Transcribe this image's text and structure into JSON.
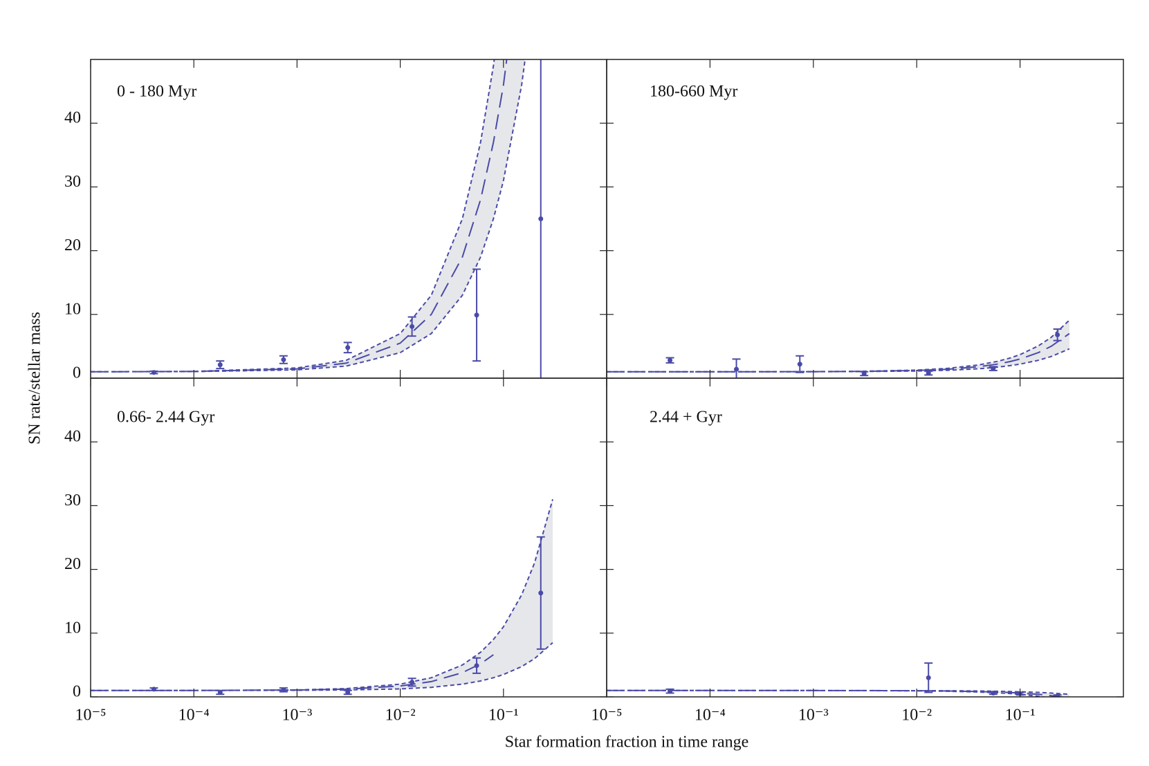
{
  "xlabel": "Star formation fraction in time range",
  "ylabel": "SN rate/stellar mass",
  "chart_data": [
    {
      "type": "scatter",
      "title": "0 - 180 Myr",
      "color": "#4a4aa8",
      "shade": "#e6e7ea",
      "xlog": true,
      "x": [
        4.1e-05,
        0.00018,
        0.00074,
        0.0031,
        0.013,
        0.055,
        0.23
      ],
      "values": [
        0.9,
        2.1,
        2.9,
        4.8,
        8.1,
        9.9,
        25
      ],
      "errors": [
        0.2,
        0.6,
        0.6,
        0.8,
        1.5,
        7.2,
        30
      ],
      "fit": {
        "x": [
          1e-05,
          0.0001,
          0.001,
          0.003,
          0.01,
          0.02,
          0.04,
          0.06,
          0.08,
          0.1,
          0.15,
          0.2
        ],
        "best": [
          1.0,
          1.05,
          1.45,
          2.35,
          5.5,
          10,
          19,
          28,
          37,
          46,
          68.5,
          91
        ],
        "upper": [
          1.01,
          1.06,
          1.6,
          2.8,
          7,
          13,
          25,
          37,
          49,
          61,
          91,
          121
        ],
        "lower": [
          1.0,
          1.03,
          1.3,
          1.9,
          4,
          7,
          13,
          19,
          25,
          31,
          46,
          61
        ]
      },
      "xlim": [
        1e-05,
        1
      ],
      "ylim": [
        0,
        50
      ],
      "xticks": [
        {
          "value": 1e-05,
          "label": "10⁻⁵"
        },
        {
          "value": 0.0001,
          "label": "10⁻⁴"
        },
        {
          "value": 0.001,
          "label": "10⁻³"
        },
        {
          "value": 0.01,
          "label": "10⁻²"
        },
        {
          "value": 0.1,
          "label": "10⁻¹"
        }
      ],
      "yticks": [
        0,
        10,
        20,
        30,
        40
      ]
    },
    {
      "type": "scatter",
      "title": "180-660 Myr",
      "color": "#4a4aa8",
      "shade": "#e6e7ea",
      "xlog": true,
      "x": [
        4.1e-05,
        0.00018,
        0.00074,
        0.0031,
        0.013,
        0.055,
        0.23
      ],
      "values": [
        2.8,
        1.4,
        2.2,
        0.7,
        0.8,
        1.5,
        6.8
      ],
      "errors": [
        0.4,
        1.6,
        1.3,
        0.3,
        0.3,
        0.3,
        0.9
      ],
      "fit": {
        "x": [
          1e-05,
          0.0001,
          0.001,
          0.003,
          0.01,
          0.02,
          0.04,
          0.06,
          0.08,
          0.1,
          0.15,
          0.2,
          0.3
        ],
        "best": [
          1.0,
          1.0,
          1.02,
          1.06,
          1.2,
          1.4,
          1.8,
          2.2,
          2.6,
          3.0,
          4.0,
          5.0,
          7.0
        ],
        "upper": [
          1.0,
          1.0,
          1.03,
          1.08,
          1.27,
          1.54,
          2.08,
          2.62,
          3.16,
          3.7,
          5.05,
          6.4,
          9.1
        ],
        "lower": [
          1.0,
          1.0,
          1.01,
          1.04,
          1.12,
          1.24,
          1.48,
          1.72,
          1.96,
          2.2,
          2.8,
          3.4,
          4.6
        ]
      },
      "xlim": [
        1e-05,
        1
      ],
      "ylim": [
        0,
        50
      ],
      "xticks": [
        {
          "value": 1e-05,
          "label": "10⁻⁵"
        },
        {
          "value": 0.0001,
          "label": "10⁻⁴"
        },
        {
          "value": 0.001,
          "label": "10⁻³"
        },
        {
          "value": 0.01,
          "label": "10⁻²"
        },
        {
          "value": 0.1,
          "label": "10⁻¹"
        }
      ],
      "yticks": [
        0,
        10,
        20,
        30,
        40
      ]
    },
    {
      "type": "scatter",
      "title": "0.66- 2.44 Gyr",
      "color": "#4a4aa8",
      "shade": "#e6e7ea",
      "xlog": true,
      "x": [
        4.1e-05,
        0.00018,
        0.00074,
        0.0031,
        0.013,
        0.055,
        0.23
      ],
      "values": [
        1.2,
        0.7,
        1.1,
        0.7,
        2.3,
        4.9,
        16.3
      ],
      "errors": [
        0.2,
        0.3,
        0.3,
        0.3,
        0.6,
        1.2,
        8.8
      ],
      "fit": {
        "x": [
          1e-05,
          0.0001,
          0.001,
          0.003,
          0.01,
          0.02,
          0.04,
          0.06,
          0.08,
          0.1,
          0.15,
          0.2,
          0.3
        ],
        "best": [
          1.0,
          1.01,
          1.07,
          1.21,
          1.7,
          2.4,
          3.8,
          5.2,
          6.6,
          null,
          null,
          null,
          null
        ],
        "upper": [
          1.0,
          1.01,
          1.1,
          1.3,
          2,
          3,
          5,
          7,
          9,
          11,
          16,
          21,
          31
        ],
        "lower": [
          1.0,
          1.0,
          1.03,
          1.08,
          1.25,
          1.5,
          2,
          2.5,
          3,
          3.5,
          4.75,
          6,
          8.5
        ]
      },
      "xlim": [
        1e-05,
        1
      ],
      "ylim": [
        0,
        50
      ],
      "xticks": [
        {
          "value": 1e-05,
          "label": "10⁻⁵"
        },
        {
          "value": 0.0001,
          "label": "10⁻⁴"
        },
        {
          "value": 0.001,
          "label": "10⁻³"
        },
        {
          "value": 0.01,
          "label": "10⁻²"
        },
        {
          "value": 0.1,
          "label": "10⁻¹"
        }
      ],
      "yticks": [
        0,
        10,
        20,
        30,
        40
      ]
    },
    {
      "type": "scatter",
      "title": "2.44 + Gyr",
      "color": "#4a4aa8",
      "shade": "#e6e7ea",
      "xlog": true,
      "x": [
        4.1e-05,
        0.013,
        0.055,
        0.1,
        0.23
      ],
      "values": [
        0.9,
        3.0,
        0.6,
        0.5,
        0.1
      ],
      "errors": [
        0.3,
        2.3,
        0.2,
        0.2,
        0.2
      ],
      "fit": {
        "x": [
          1e-05,
          0.0001,
          0.001,
          0.003,
          0.01,
          0.02,
          0.04,
          0.06,
          0.08,
          0.1,
          0.15,
          0.2,
          0.3
        ],
        "best": [
          1.0,
          1.0,
          1.0,
          0.99,
          0.96,
          0.92,
          0.84,
          0.76,
          0.68,
          0.6,
          0.4,
          0.2,
          -0.2
        ],
        "upper": [
          1,
          1,
          1,
          0.99,
          0.98,
          0.96,
          0.92,
          0.88,
          0.84,
          0.8,
          0.7,
          0.6,
          0.4
        ],
        "lower": [
          1,
          1,
          0.99,
          0.98,
          0.94,
          0.88,
          0.76,
          0.64,
          0.52,
          0.4,
          0.1,
          -0.2,
          -0.8
        ]
      },
      "xlim": [
        1e-05,
        1
      ],
      "ylim": [
        0,
        50
      ],
      "xticks": [
        {
          "value": 1e-05,
          "label": "10⁻⁵"
        },
        {
          "value": 0.0001,
          "label": "10⁻⁴"
        },
        {
          "value": 0.001,
          "label": "10⁻³"
        },
        {
          "value": 0.01,
          "label": "10⁻²"
        },
        {
          "value": 0.1,
          "label": "10⁻¹"
        }
      ],
      "yticks": [
        0,
        10,
        20,
        30,
        40
      ]
    }
  ]
}
